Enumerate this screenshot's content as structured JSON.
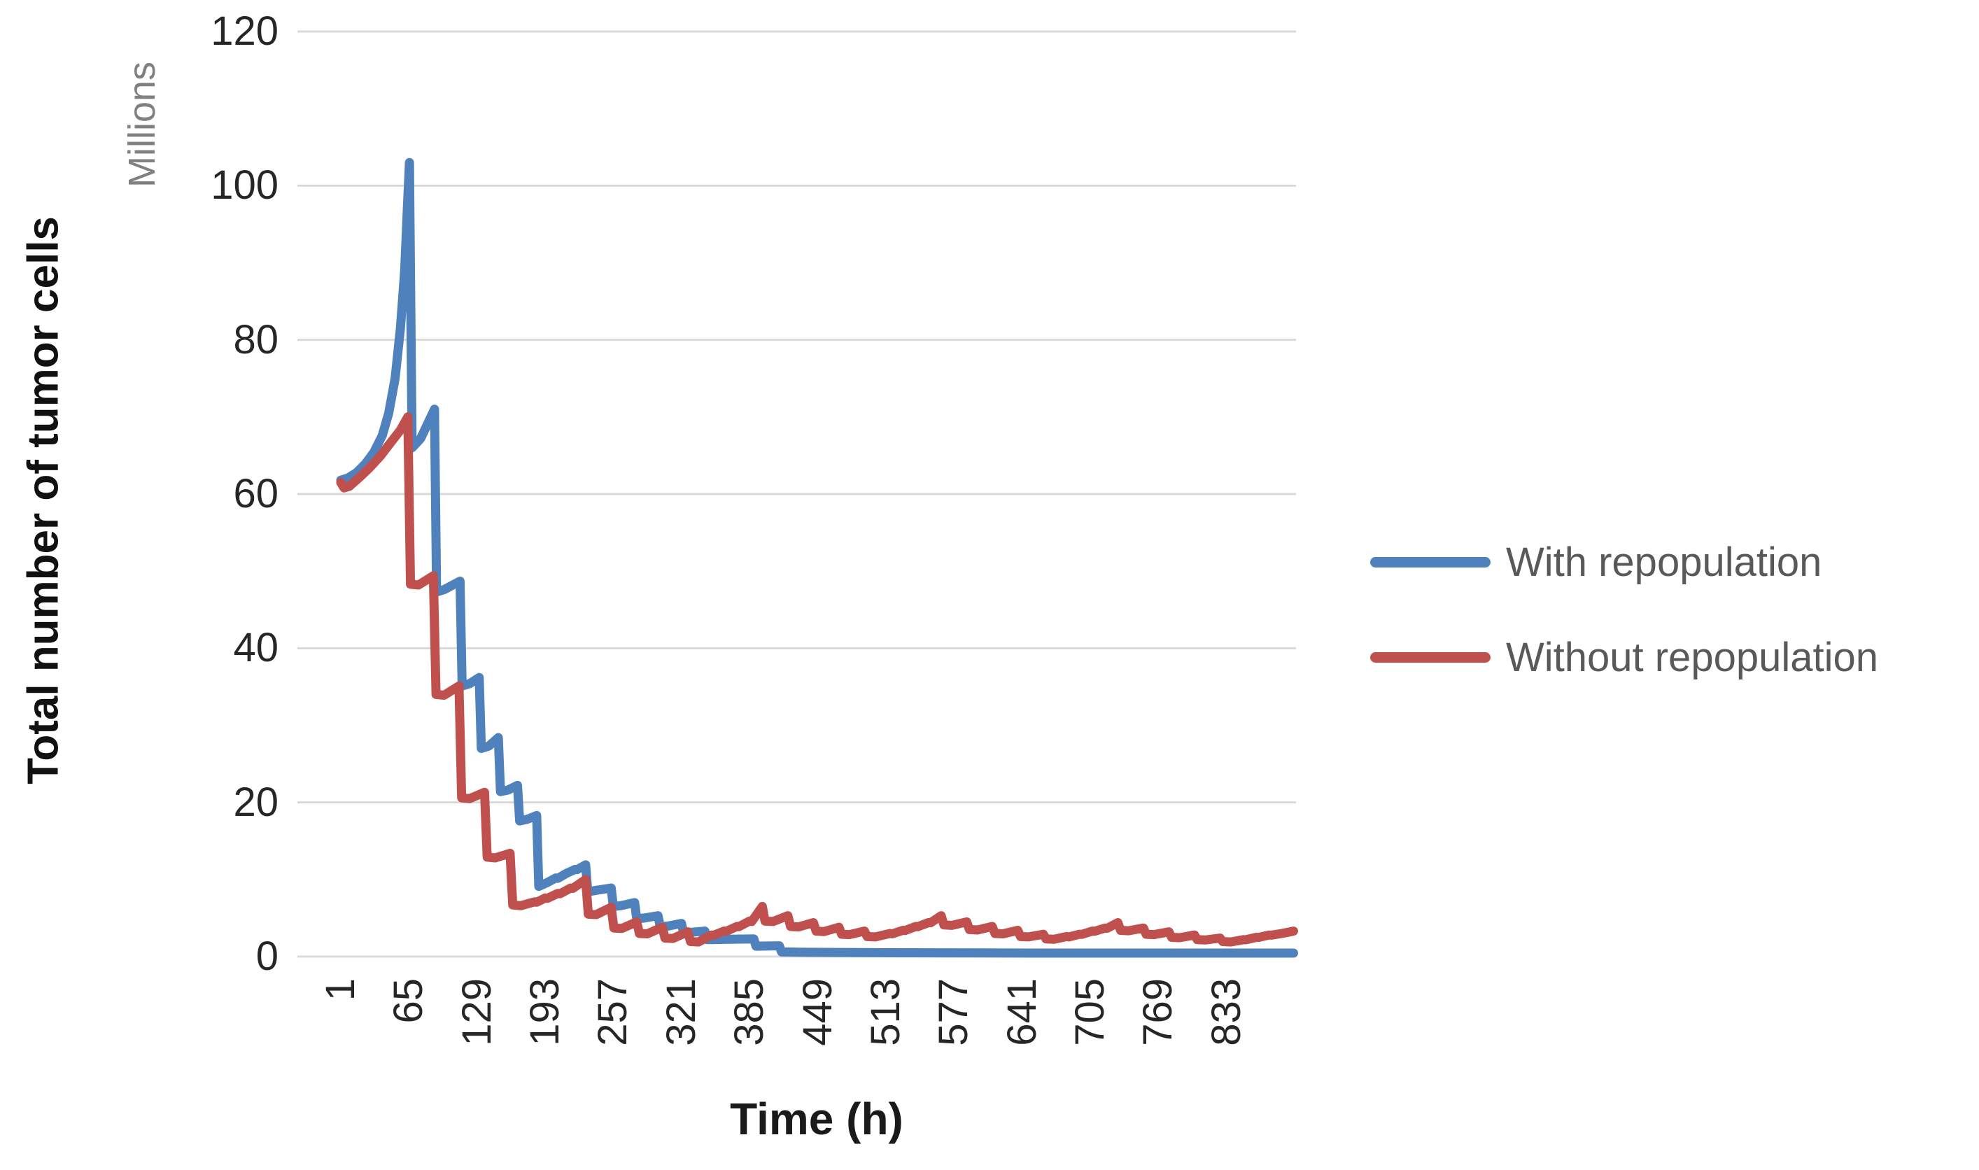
{
  "chart_data": {
    "type": "line",
    "title": "",
    "xlabel": "Time (h)",
    "ylabel": "Total number of tumor cells",
    "y_unit_label": "Millions",
    "x_ticks": [
      1,
      65,
      129,
      193,
      257,
      321,
      385,
      449,
      513,
      577,
      641,
      705,
      769,
      833
    ],
    "y_ticks": [
      0,
      20,
      40,
      60,
      80,
      100,
      120
    ],
    "xlim": [
      1,
      896
    ],
    "ylim": [
      0,
      120
    ],
    "grid": "horizontal",
    "legend_position": "right-middle",
    "series": [
      {
        "name": "With repopulation",
        "color": "#4F81BD",
        "points": [
          [
            1,
            61.8
          ],
          [
            8,
            62.1
          ],
          [
            16,
            62.8
          ],
          [
            24,
            63.9
          ],
          [
            32,
            65.4
          ],
          [
            40,
            67.6
          ],
          [
            46,
            70.5
          ],
          [
            52,
            75
          ],
          [
            57,
            81.5
          ],
          [
            61,
            89
          ],
          [
            63.5,
            97
          ],
          [
            65.5,
            103
          ],
          [
            68,
            66
          ],
          [
            76,
            67.2
          ],
          [
            89,
            71
          ],
          [
            91,
            47.3
          ],
          [
            98,
            47.6
          ],
          [
            113,
            48.7
          ],
          [
            115,
            35.1
          ],
          [
            122,
            35.4
          ],
          [
            131,
            36.2
          ],
          [
            133,
            27
          ],
          [
            140,
            27.3
          ],
          [
            149,
            28.4
          ],
          [
            151,
            21.4
          ],
          [
            158,
            21.6
          ],
          [
            167,
            22.2
          ],
          [
            169,
            17.6
          ],
          [
            176,
            17.8
          ],
          [
            185,
            18.3
          ],
          [
            187,
            9.1
          ],
          [
            195,
            9.6
          ],
          [
            203,
            10.2
          ],
          [
            205,
            10.15
          ],
          [
            213,
            10.8
          ],
          [
            221,
            11.3
          ],
          [
            223,
            11.28
          ],
          [
            231,
            11.9
          ],
          [
            233,
            8.4
          ],
          [
            241,
            8.6
          ],
          [
            255,
            8.9
          ],
          [
            257,
            6.5
          ],
          [
            264,
            6.6
          ],
          [
            277,
            7.0
          ],
          [
            279,
            4.9
          ],
          [
            286,
            5.0
          ],
          [
            299,
            5.3
          ],
          [
            301,
            3.9
          ],
          [
            308,
            3.95
          ],
          [
            321,
            4.3
          ],
          [
            323,
            3.1
          ],
          [
            330,
            3.15
          ],
          [
            343,
            3.3
          ],
          [
            345,
            2.2
          ],
          [
            366,
            2.25
          ],
          [
            389,
            2.3
          ],
          [
            391,
            1.35
          ],
          [
            413,
            1.4
          ],
          [
            415,
            0.6
          ],
          [
            440,
            0.55
          ],
          [
            520,
            0.5
          ],
          [
            650,
            0.45
          ],
          [
            896,
            0.45
          ]
        ]
      },
      {
        "name": "Without repopulation",
        "color": "#C0504D",
        "points": [
          [
            1,
            61.5
          ],
          [
            4,
            60.8
          ],
          [
            9,
            61.0
          ],
          [
            18,
            62.1
          ],
          [
            28,
            63.4
          ],
          [
            38,
            64.9
          ],
          [
            48,
            66.7
          ],
          [
            57,
            68.3
          ],
          [
            64,
            70
          ],
          [
            66.5,
            48.3
          ],
          [
            74,
            48.2
          ],
          [
            88,
            49.4
          ],
          [
            90.5,
            34
          ],
          [
            98,
            33.9
          ],
          [
            112,
            35.1
          ],
          [
            114.5,
            20.6
          ],
          [
            122,
            20.5
          ],
          [
            136,
            21.3
          ],
          [
            138.5,
            12.9
          ],
          [
            146,
            12.8
          ],
          [
            160,
            13.4
          ],
          [
            162.5,
            6.7
          ],
          [
            170,
            6.6
          ],
          [
            183,
            7.1
          ],
          [
            185,
            7.05
          ],
          [
            193,
            7.6
          ],
          [
            195,
            7.55
          ],
          [
            205,
            8.2
          ],
          [
            207,
            8.15
          ],
          [
            217,
            8.9
          ],
          [
            219,
            8.85
          ],
          [
            231,
            10.0
          ],
          [
            233.5,
            5.5
          ],
          [
            241,
            5.45
          ],
          [
            255,
            6.4
          ],
          [
            257.5,
            3.7
          ],
          [
            265,
            3.65
          ],
          [
            279,
            4.5
          ],
          [
            281.5,
            3.0
          ],
          [
            289,
            2.95
          ],
          [
            303,
            3.8
          ],
          [
            305.5,
            2.4
          ],
          [
            313,
            2.35
          ],
          [
            327,
            3.2
          ],
          [
            329.5,
            1.95
          ],
          [
            337,
            1.9
          ],
          [
            349,
            2.8
          ],
          [
            351,
            2.75
          ],
          [
            361,
            3.3
          ],
          [
            363,
            3.28
          ],
          [
            373,
            3.9
          ],
          [
            375,
            3.88
          ],
          [
            385,
            4.6
          ],
          [
            387,
            4.55
          ],
          [
            397,
            6.5
          ],
          [
            399.5,
            4.6
          ],
          [
            407,
            4.55
          ],
          [
            421,
            5.3
          ],
          [
            423.5,
            3.9
          ],
          [
            431,
            3.85
          ],
          [
            445,
            4.4
          ],
          [
            447.5,
            3.3
          ],
          [
            455,
            3.25
          ],
          [
            469,
            3.8
          ],
          [
            471.5,
            2.9
          ],
          [
            479,
            2.85
          ],
          [
            493,
            3.3
          ],
          [
            495.5,
            2.6
          ],
          [
            503,
            2.55
          ],
          [
            517,
            3.0
          ],
          [
            519,
            2.95
          ],
          [
            529,
            3.4
          ],
          [
            531,
            3.38
          ],
          [
            541,
            3.9
          ],
          [
            543,
            3.88
          ],
          [
            553,
            4.4
          ],
          [
            555,
            4.38
          ],
          [
            565,
            5.3
          ],
          [
            567.5,
            4.1
          ],
          [
            575,
            4.05
          ],
          [
            589,
            4.5
          ],
          [
            591.5,
            3.5
          ],
          [
            599,
            3.45
          ],
          [
            613,
            3.9
          ],
          [
            615.5,
            3.0
          ],
          [
            623,
            2.95
          ],
          [
            637,
            3.4
          ],
          [
            639.5,
            2.6
          ],
          [
            647,
            2.55
          ],
          [
            661,
            2.9
          ],
          [
            663.5,
            2.3
          ],
          [
            671,
            2.25
          ],
          [
            683,
            2.6
          ],
          [
            685,
            2.55
          ],
          [
            695,
            2.9
          ],
          [
            697,
            2.88
          ],
          [
            707,
            3.3
          ],
          [
            709,
            3.28
          ],
          [
            719,
            3.7
          ],
          [
            721,
            3.68
          ],
          [
            731,
            4.4
          ],
          [
            733.5,
            3.4
          ],
          [
            741,
            3.35
          ],
          [
            755,
            3.7
          ],
          [
            757.5,
            2.9
          ],
          [
            765,
            2.85
          ],
          [
            779,
            3.2
          ],
          [
            781.5,
            2.5
          ],
          [
            789,
            2.45
          ],
          [
            803,
            2.8
          ],
          [
            805.5,
            2.2
          ],
          [
            813,
            2.15
          ],
          [
            827,
            2.4
          ],
          [
            829.5,
            1.95
          ],
          [
            837,
            1.9
          ],
          [
            849,
            2.2
          ],
          [
            851,
            2.18
          ],
          [
            861,
            2.5
          ],
          [
            863,
            2.48
          ],
          [
            873,
            2.8
          ],
          [
            875,
            2.78
          ],
          [
            885,
            3.0
          ],
          [
            896,
            3.3
          ]
        ]
      }
    ]
  },
  "style": {
    "background": "#ffffff",
    "gridline_color": "#d9d9d9",
    "axis_tick_text_color": "#262626",
    "axis_title_color": "#111111",
    "unit_text_color": "#808080",
    "legend_text_color": "#595959",
    "series_line_width": 13
  }
}
